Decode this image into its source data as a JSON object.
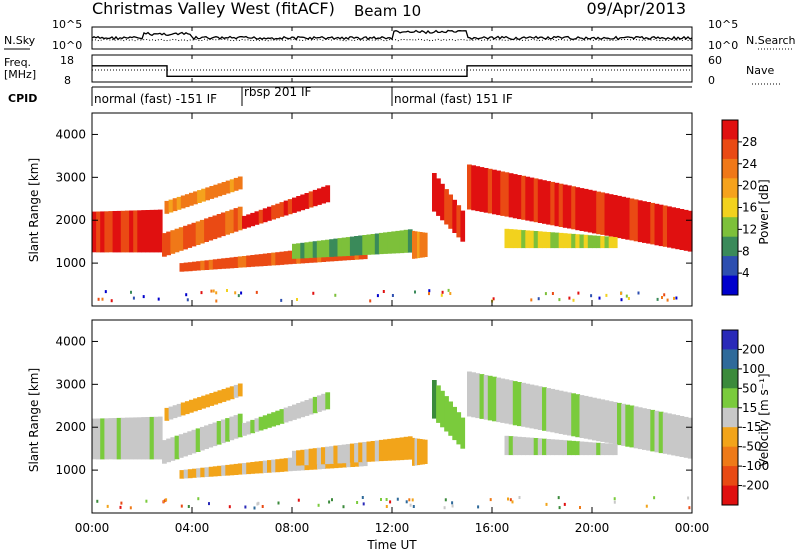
{
  "header": {
    "title_left": "Christmas Valley West (fitACF)",
    "title_center": "Beam 10",
    "date": "09/Apr/2013"
  },
  "colors": {
    "power": [
      "#0000cc",
      "#2d4fb0",
      "#3a8a5a",
      "#7dc03a",
      "#f2d21e",
      "#f5a21c",
      "#f07818",
      "#ea4a14",
      "#e01010"
    ],
    "velocity": [
      "#2a2ab8",
      "#2f6a9a",
      "#3b8a3b",
      "#7acb3c",
      "#c8c8c8",
      "#f2a41a",
      "#ee7a18",
      "#e84a14",
      "#e01010"
    ]
  },
  "panels": {
    "sky": {
      "label": "N.Sky",
      "left_ticks": [
        "10^5",
        "10^0"
      ],
      "right_ticks": [
        "10^5",
        "10^0"
      ],
      "right_label": "N.Search",
      "series_note": "N.Sky solid, N.Search dotted"
    },
    "freq": {
      "label_line1": "Freq.",
      "label_line2": "[MHz]",
      "left_ticks": [
        "18",
        "8"
      ],
      "right_ticks": [
        "60",
        "0"
      ],
      "right_label": "Nave",
      "segments_mhz": [
        {
          "from_hour": 0,
          "to_hour": 3.0,
          "value": 14.5
        },
        {
          "from_hour": 3.0,
          "to_hour": 15.0,
          "value": 10.3
        },
        {
          "from_hour": 15.0,
          "to_hour": 24,
          "value": 14.5
        }
      ]
    },
    "cpid": {
      "label": "CPID",
      "segments": [
        {
          "text": "normal (fast) -151 IF",
          "start_hour": 0
        },
        {
          "text": "rbsp 201 IF",
          "start_hour": 6.0
        },
        {
          "text": "normal (fast) 151 IF",
          "start_hour": 12.0
        }
      ]
    }
  },
  "chart_data": [
    {
      "type": "heatmap",
      "title": "Power",
      "ylabel": "Slant Range [km]",
      "ylim": [
        0,
        4500
      ],
      "y_ticks": [
        "1000",
        "2000",
        "3000",
        "4000"
      ],
      "x_ticks": [
        "00:00",
        "04:00",
        "08:00",
        "12:00",
        "16:00",
        "20:00",
        "00:00"
      ],
      "xlim_hours": [
        0,
        24
      ],
      "colorbar_label": "Power [dB]",
      "colorbar_ticks": [
        "28",
        "24",
        "20",
        "16",
        "12",
        "8",
        "4"
      ],
      "bands": [
        {
          "t0": 0.0,
          "t1": 2.8,
          "r_lo0": 1250,
          "r_lo1": 1250,
          "r_hi0": 2200,
          "r_hi1": 2250,
          "c": 8
        },
        {
          "t0": 2.8,
          "t1": 6.0,
          "r_lo0": 1150,
          "r_lo1": 1800,
          "r_hi0": 1700,
          "r_hi1": 2350,
          "c": 7
        },
        {
          "t0": 2.9,
          "t1": 6.0,
          "r_lo0": 2150,
          "r_lo1": 2750,
          "r_hi0": 2450,
          "r_hi1": 3050,
          "c": 6
        },
        {
          "t0": 3.5,
          "t1": 11.0,
          "r_lo0": 800,
          "r_lo1": 1100,
          "r_hi0": 1000,
          "r_hi1": 1500,
          "c": 7
        },
        {
          "t0": 6.0,
          "t1": 9.5,
          "r_lo0": 1800,
          "r_lo1": 2450,
          "r_hi0": 2100,
          "r_hi1": 2850,
          "c": 8
        },
        {
          "t0": 8.0,
          "t1": 12.8,
          "r_lo0": 1100,
          "r_lo1": 1250,
          "r_hi0": 1450,
          "r_hi1": 1800,
          "c": 3
        },
        {
          "t0": 12.8,
          "t1": 13.4,
          "r_lo0": 1100,
          "r_lo1": 1150,
          "r_hi0": 1750,
          "r_hi1": 1700,
          "c": 6
        },
        {
          "t0": 13.6,
          "t1": 14.9,
          "r_lo0": 2200,
          "r_lo1": 1400,
          "r_hi0": 3100,
          "r_hi1": 2100,
          "c": 8
        },
        {
          "t0": 15.0,
          "t1": 24.0,
          "r_lo0": 2250,
          "r_lo1": 1250,
          "r_hi0": 3300,
          "r_hi1": 2200,
          "c": 8
        },
        {
          "t0": 16.5,
          "t1": 21.0,
          "r_lo0": 1350,
          "r_lo1": 1350,
          "r_hi0": 1800,
          "r_hi1": 1600,
          "c": 4
        }
      ]
    },
    {
      "type": "heatmap",
      "title": "Velocity",
      "ylabel": "Slant Range [km]",
      "ylim": [
        0,
        4500
      ],
      "y_ticks": [
        "1000",
        "2000",
        "3000",
        "4000"
      ],
      "x_ticks": [
        "00:00",
        "04:00",
        "08:00",
        "12:00",
        "16:00",
        "20:00",
        "00:00"
      ],
      "xlabel": "Time UT",
      "xlim_hours": [
        0,
        24
      ],
      "colorbar_label": "Velocity [m s⁻¹]",
      "colorbar_ticks": [
        "200",
        "100",
        "50",
        "15",
        "-15",
        "-50",
        "-100",
        "-200"
      ],
      "bands": [
        {
          "t0": 0.0,
          "t1": 2.8,
          "r_lo0": 1250,
          "r_lo1": 1250,
          "r_hi0": 2200,
          "r_hi1": 2250,
          "c": 4
        },
        {
          "t0": 2.8,
          "t1": 6.0,
          "r_lo0": 1150,
          "r_lo1": 1800,
          "r_hi0": 1700,
          "r_hi1": 2350,
          "c": 4
        },
        {
          "t0": 2.9,
          "t1": 6.0,
          "r_lo0": 2150,
          "r_lo1": 2750,
          "r_hi0": 2450,
          "r_hi1": 3050,
          "c": 5
        },
        {
          "t0": 3.5,
          "t1": 11.0,
          "r_lo0": 800,
          "r_lo1": 1100,
          "r_hi0": 1000,
          "r_hi1": 1500,
          "c": 5
        },
        {
          "t0": 6.0,
          "t1": 9.5,
          "r_lo0": 1800,
          "r_lo1": 2450,
          "r_hi0": 2100,
          "r_hi1": 2850,
          "c": 4
        },
        {
          "t0": 8.0,
          "t1": 12.8,
          "r_lo0": 1100,
          "r_lo1": 1250,
          "r_hi0": 1450,
          "r_hi1": 1800,
          "c": 5
        },
        {
          "t0": 12.8,
          "t1": 13.4,
          "r_lo0": 1100,
          "r_lo1": 1150,
          "r_hi0": 1750,
          "r_hi1": 1700,
          "c": 5
        },
        {
          "t0": 13.6,
          "t1": 14.9,
          "r_lo0": 2200,
          "r_lo1": 1400,
          "r_hi0": 3100,
          "r_hi1": 2100,
          "c": 3
        },
        {
          "t0": 15.0,
          "t1": 24.0,
          "r_lo0": 2250,
          "r_lo1": 1250,
          "r_hi0": 3300,
          "r_hi1": 2200,
          "c": 4
        },
        {
          "t0": 16.5,
          "t1": 21.0,
          "r_lo0": 1350,
          "r_lo1": 1350,
          "r_hi0": 1800,
          "r_hi1": 1600,
          "c": 4
        }
      ]
    }
  ]
}
